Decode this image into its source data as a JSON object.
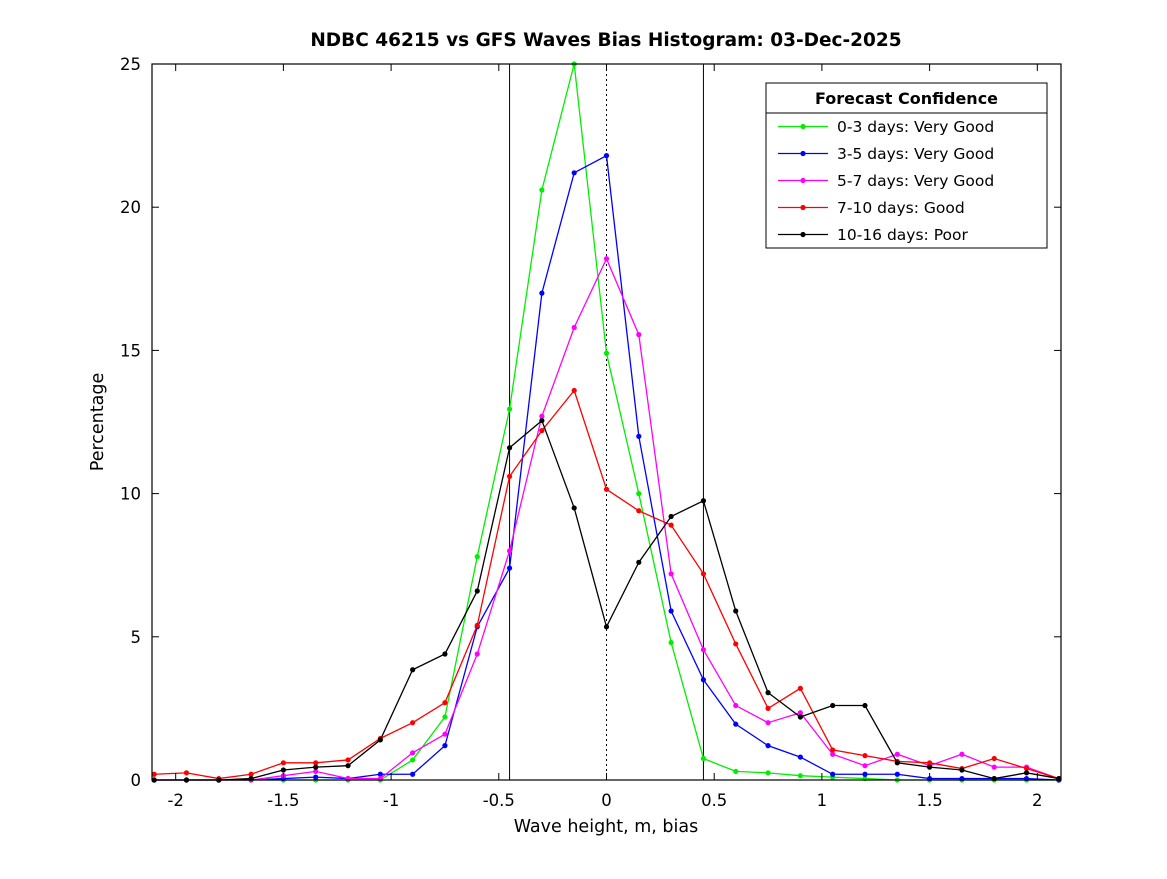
{
  "chart_data": {
    "type": "line",
    "title": "NDBC 46215 vs GFS Waves Bias Histogram: 03-Dec-2025",
    "xlabel": "Wave height, m, bias",
    "ylabel": "Percentage",
    "xlim": [
      -2.11,
      2.11
    ],
    "ylim": [
      0,
      25
    ],
    "xticks": [
      -2,
      -1.5,
      -1,
      -0.5,
      0,
      0.5,
      1,
      1.5,
      2
    ],
    "yticks": [
      0,
      5,
      10,
      15,
      20,
      25
    ],
    "grid": false,
    "x": [
      -2.1,
      -1.95,
      -1.8,
      -1.65,
      -1.5,
      -1.35,
      -1.2,
      -1.05,
      -0.9,
      -0.75,
      -0.6,
      -0.45,
      -0.3,
      -0.15,
      0,
      0.15,
      0.3,
      0.45,
      0.6,
      0.75,
      0.9,
      1.05,
      1.2,
      1.35,
      1.5,
      1.65,
      1.8,
      1.95,
      2.1
    ],
    "series": [
      {
        "name": "0-3 days: Very Good",
        "color": "#00ee00",
        "values": [
          0,
          0,
          0,
          0,
          0,
          0,
          0,
          0,
          0.7,
          2.2,
          7.8,
          12.95,
          20.6,
          25,
          14.9,
          10,
          4.8,
          0.75,
          0.3,
          0.25,
          0.15,
          0.1,
          0.05,
          0,
          0,
          0,
          0,
          0,
          0
        ]
      },
      {
        "name": "3-5 days: Very Good",
        "color": "#0000ff",
        "values": [
          0,
          0,
          0,
          0,
          0.05,
          0.1,
          0.05,
          0.2,
          0.2,
          1.2,
          5.35,
          7.4,
          17,
          21.2,
          21.8,
          12,
          5.9,
          3.5,
          1.95,
          1.2,
          0.8,
          0.2,
          0.2,
          0.2,
          0.05,
          0.05,
          0.05,
          0.05,
          0
        ]
      },
      {
        "name": "5-7 days: Very Good",
        "color": "#ff00ff",
        "values": [
          0,
          0,
          0,
          0,
          0.15,
          0.3,
          0.05,
          0.05,
          0.95,
          1.6,
          4.4,
          8,
          12.7,
          15.8,
          18.2,
          15.55,
          7.2,
          4.55,
          2.6,
          2,
          2.35,
          0.9,
          0.5,
          0.9,
          0.5,
          0.9,
          0.45,
          0.45,
          0.05
        ]
      },
      {
        "name": "7-10 days: Good",
        "color": "#ff0000",
        "values": [
          0.2,
          0.25,
          0.05,
          0.2,
          0.6,
          0.6,
          0.7,
          1.45,
          2,
          2.7,
          5.4,
          10.6,
          12.2,
          13.6,
          10.15,
          9.4,
          8.9,
          7.2,
          4.75,
          2.5,
          3.2,
          1.05,
          0.85,
          0.65,
          0.6,
          0.4,
          0.75,
          0.4,
          0.05
        ]
      },
      {
        "name": "10-16 days: Poor",
        "color": "#000000",
        "values": [
          0,
          0,
          0,
          0.05,
          0.35,
          0.45,
          0.5,
          1.4,
          3.85,
          4.4,
          6.6,
          11.6,
          12.55,
          9.5,
          5.35,
          7.6,
          9.2,
          9.75,
          5.9,
          3.05,
          2.2,
          2.6,
          2.6,
          0.6,
          0.45,
          0.35,
          0.05,
          0.25,
          0.05
        ]
      }
    ],
    "reference_lines": [
      {
        "x": -0.45,
        "style": "solid",
        "color": "#000000"
      },
      {
        "x": 0,
        "style": "dotted",
        "color": "#000000"
      },
      {
        "x": 0.45,
        "style": "solid",
        "color": "#000000"
      }
    ],
    "legend": {
      "title": "Forecast Confidence",
      "position": "top-right"
    },
    "axis_color": "#000000",
    "background_color": "#ffffff"
  }
}
